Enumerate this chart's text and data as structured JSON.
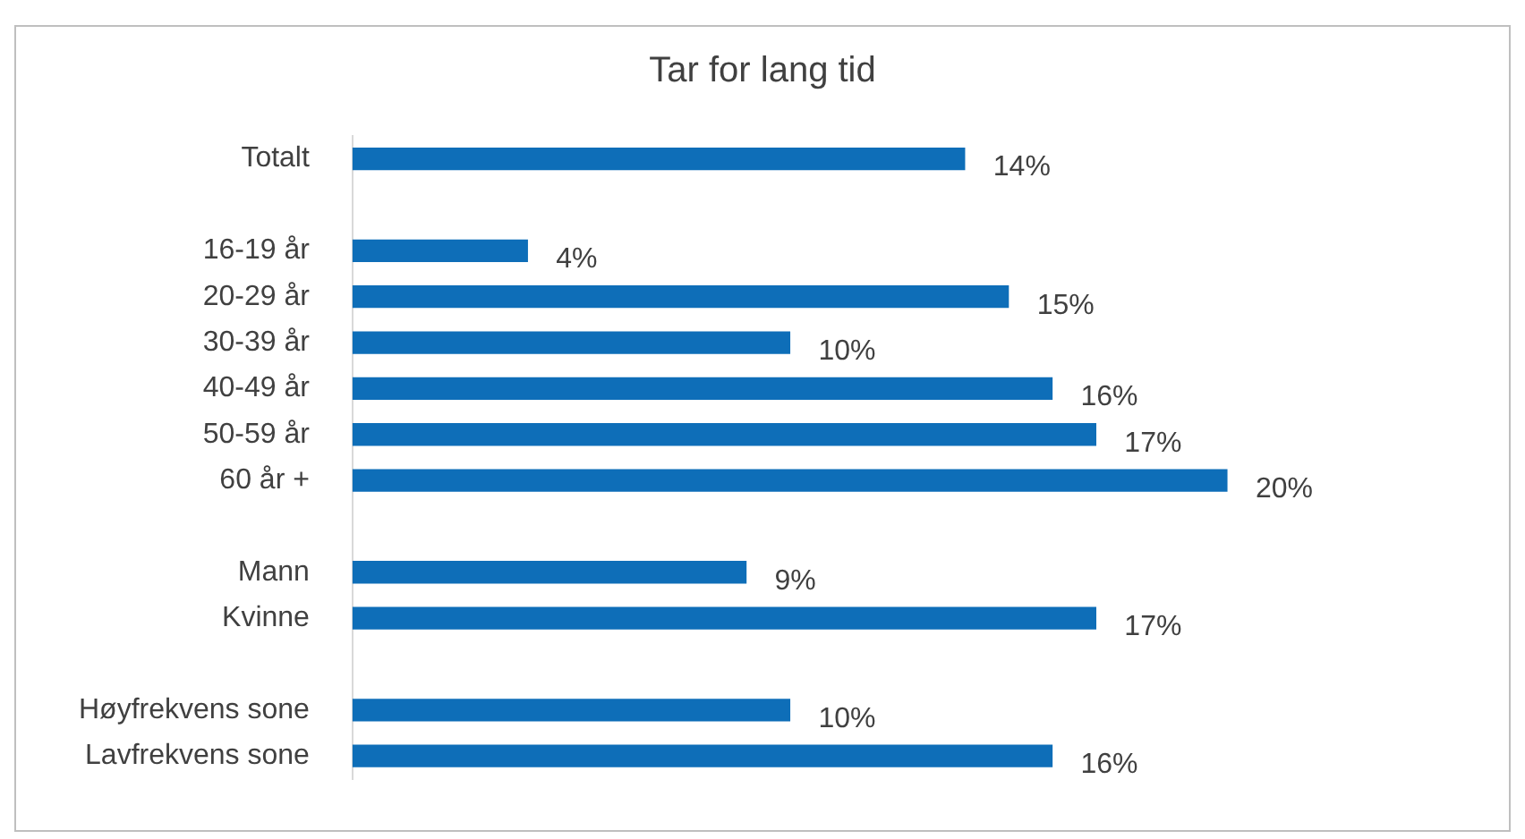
{
  "chart_data": {
    "type": "bar",
    "orientation": "horizontal",
    "title": "Tar for lang tid",
    "categories": [
      "Totalt",
      null,
      "16-19 år",
      "20-29 år",
      "30-39 år",
      "40-49 år",
      "50-59 år",
      "60 år +",
      null,
      "Mann",
      "Kvinne",
      null,
      "Høyfrekvens sone",
      "Lavfrekvens sone"
    ],
    "values": [
      14,
      null,
      4,
      15,
      10,
      16,
      17,
      20,
      null,
      9,
      17,
      null,
      10,
      16
    ],
    "value_labels": [
      "14%",
      null,
      "4%",
      "15%",
      "10%",
      "16%",
      "17%",
      "20%",
      null,
      "9%",
      "17%",
      null,
      "10%",
      "16%"
    ],
    "color": "#0e6eb8",
    "legend": false,
    "tick_labels": "y"
  }
}
